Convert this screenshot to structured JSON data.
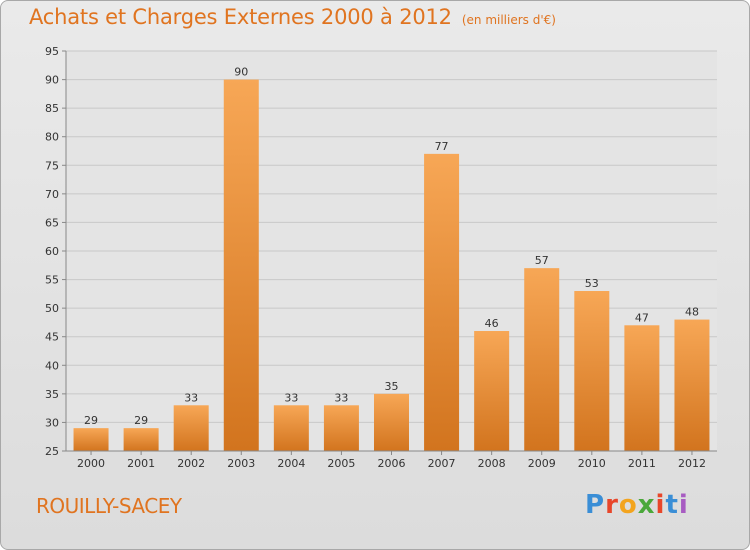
{
  "header": {
    "title": "Achats et Charges Externes 2000 à 2012",
    "unit": "(en milliers d'€)"
  },
  "footer": {
    "place": "ROUILLY-SACEY",
    "logo": "Proxiti",
    "logo_colors": [
      "#3a8ed6",
      "#e8462a",
      "#f3a41e",
      "#4aa83a",
      "#e8462a",
      "#3a8ed6",
      "#a85cc2"
    ]
  },
  "colors": {
    "accent": "#e07420",
    "bar_top": "#f7a756",
    "bar_bottom": "#d2741e"
  },
  "chart_data": {
    "type": "bar",
    "categories": [
      "2000",
      "2001",
      "2002",
      "2003",
      "2004",
      "2005",
      "2006",
      "2007",
      "2008",
      "2009",
      "2010",
      "2011",
      "2012"
    ],
    "values": [
      29,
      29,
      33,
      90,
      33,
      33,
      35,
      77,
      46,
      57,
      53,
      47,
      48
    ],
    "title": "Achats et Charges Externes 2000 à 2012",
    "subtitle": "(en milliers d'€)",
    "ylim": [
      25,
      95
    ],
    "yticks": [
      25,
      30,
      35,
      40,
      45,
      50,
      55,
      60,
      65,
      70,
      75,
      80,
      85,
      90,
      95
    ],
    "grid": true,
    "data_labels": true
  }
}
